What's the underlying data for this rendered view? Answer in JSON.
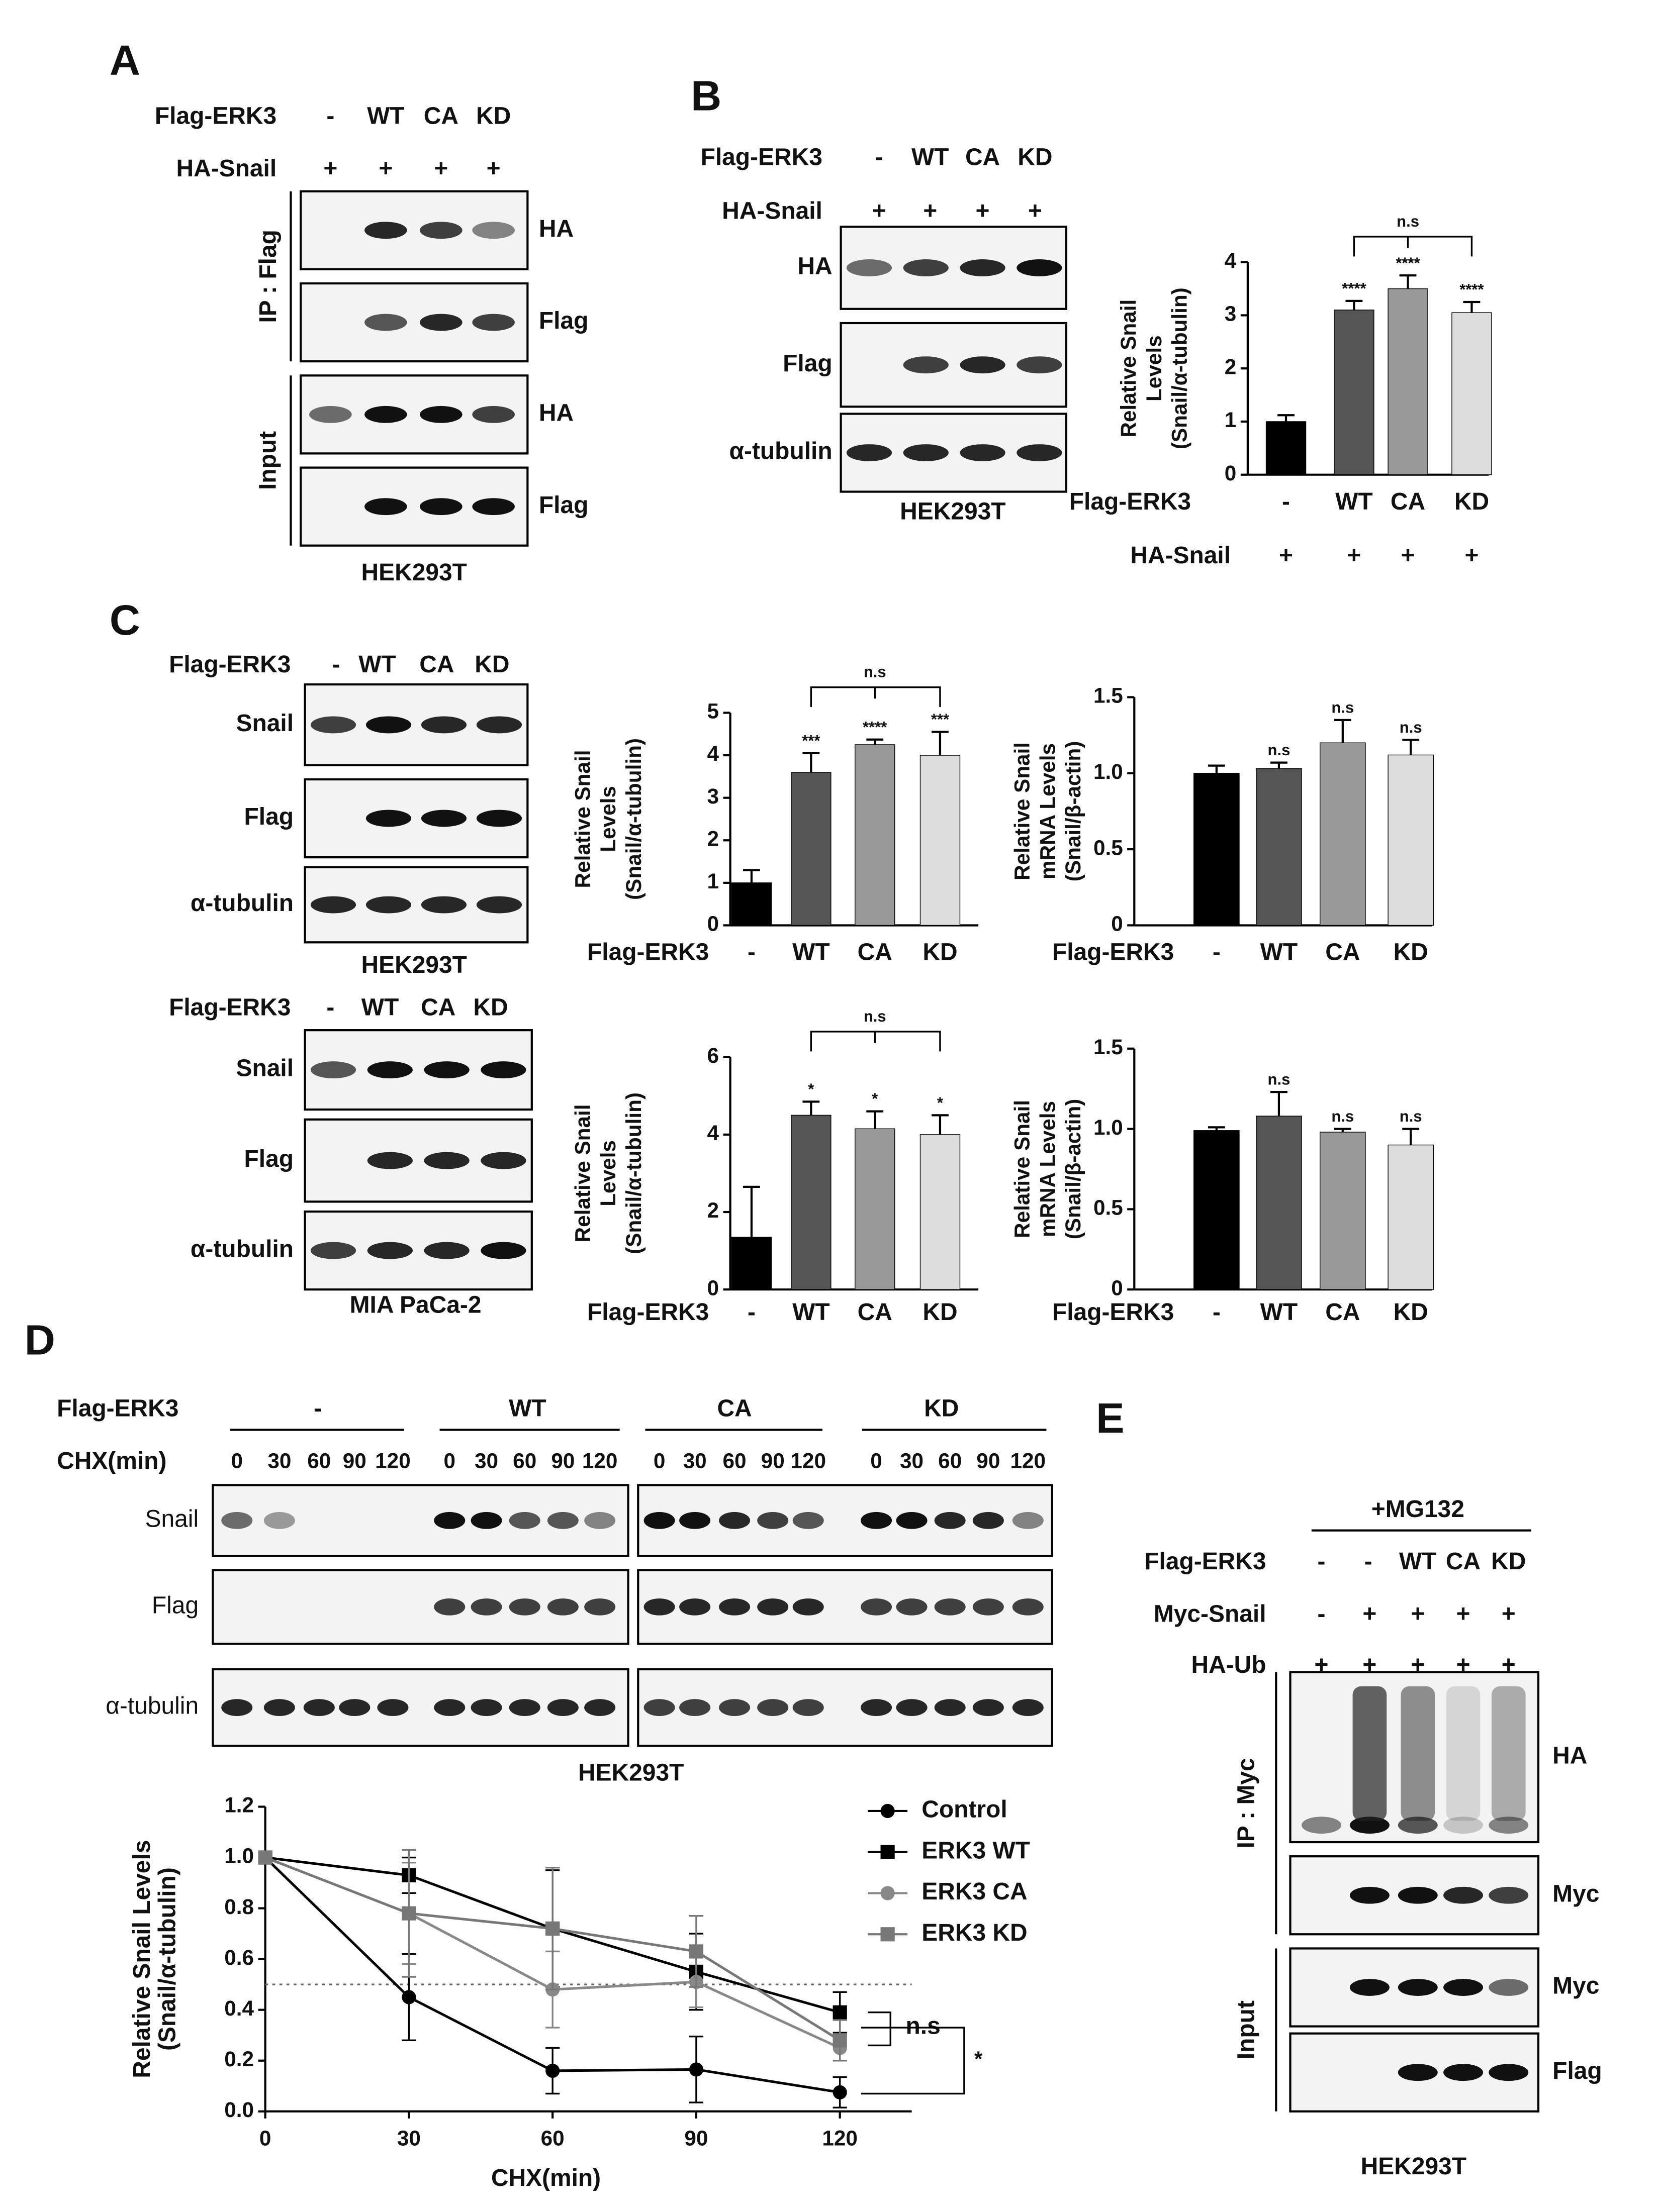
{
  "panel_labels": [
    "A",
    "B",
    "C",
    "D",
    "E"
  ],
  "blots": [
    {
      "headers": [
        {
          "label": "Flag-ERK3",
          "lanes": [
            "-",
            "WT",
            "CA",
            "KD"
          ]
        },
        {
          "label": "HA-Snail",
          "lanes": [
            "+",
            "+",
            "+",
            "+"
          ]
        }
      ],
      "rows": [
        "HA",
        "Flag",
        "HA",
        "Flag"
      ],
      "groups": [
        "IP : Flag",
        "Input"
      ],
      "cell_line": "HEK293T"
    },
    {
      "headers": [
        {
          "label": "Flag-ERK3",
          "lanes": [
            "-",
            "WT",
            "CA",
            "KD"
          ]
        },
        {
          "label": "HA-Snail",
          "lanes": [
            "+",
            "+",
            "+",
            "+"
          ]
        }
      ],
      "rows": [
        "HA",
        "Flag",
        "α-tubulin"
      ],
      "cell_line": "HEK293T"
    },
    {
      "headers": [
        {
          "label": "Flag-ERK3",
          "lanes": [
            "-",
            "WT",
            "CA",
            "KD"
          ]
        }
      ],
      "rows": [
        "Snail",
        "Flag",
        "α-tubulin"
      ],
      "cell_line": "HEK293T"
    },
    {
      "headers": [
        {
          "label": "Flag-ERK3",
          "lanes": [
            "-",
            "WT",
            "CA",
            "KD"
          ]
        }
      ],
      "rows": [
        "Snail",
        "Flag",
        "α-tubulin"
      ],
      "cell_line": "MIA PaCa-2"
    },
    {
      "headers": [
        {
          "label": "Flag-ERK3",
          "lanes": [
            "-",
            "WT",
            "CA",
            "KD"
          ]
        },
        {
          "label": "CHX(min)",
          "lanes": [
            "0",
            "30",
            "60",
            "90",
            "120",
            "0",
            "30",
            "60",
            "90",
            "120",
            "0",
            "30",
            "60",
            "90",
            "120",
            "0",
            "30",
            "60",
            "90",
            "120"
          ]
        }
      ],
      "rows": [
        "Snail",
        "Flag",
        "α-tubulin"
      ],
      "cell_line": "HEK293T"
    },
    {
      "treatment": "+MG132",
      "headers": [
        {
          "label": "Flag-ERK3",
          "lanes": [
            "-",
            "-",
            "WT",
            "CA",
            "KD"
          ]
        },
        {
          "label": "Myc-Snail",
          "lanes": [
            "-",
            "+",
            "+",
            "+",
            "+"
          ]
        },
        {
          "label": "HA-Ub",
          "lanes": [
            "+",
            "+",
            "+",
            "+",
            "+"
          ]
        }
      ],
      "rows": [
        "HA",
        "Myc",
        "Myc",
        "Flag"
      ],
      "groups": [
        "IP : Myc",
        "Input"
      ],
      "cell_line": "HEK293T"
    }
  ],
  "chart_data": [
    {
      "type": "bar",
      "ylabel": [
        "Relative Snail",
        "Levels",
        "(Snail/α-tubulin)"
      ],
      "xlabel": "Flag-ERK3",
      "categories": [
        "-",
        "WT",
        "CA",
        "KD"
      ],
      "values": [
        1.0,
        3.1,
        3.5,
        3.05
      ],
      "errors": [
        0.12,
        0.17,
        0.25,
        0.2
      ],
      "significance": [
        null,
        "****",
        "****",
        "****"
      ],
      "colors": [
        "#000000",
        "#555555",
        "#999999",
        "#dddddd"
      ],
      "ylim": [
        0,
        4
      ],
      "yticks": [
        0,
        1,
        2,
        3,
        4
      ],
      "bracket_label": "n.s",
      "row2": {
        "label": "HA-Snail",
        "values": [
          "+",
          "+",
          "+",
          "+"
        ]
      }
    },
    {
      "type": "bar",
      "ylabel": [
        "Relative Snail",
        "Levels",
        "(Snail/α-tubulin)"
      ],
      "xlabel": "Flag-ERK3",
      "categories": [
        "-",
        "WT",
        "CA",
        "KD"
      ],
      "values": [
        1.0,
        3.6,
        4.25,
        4.0
      ],
      "errors": [
        0.3,
        0.45,
        0.12,
        0.55
      ],
      "significance": [
        null,
        "***",
        "****",
        "***"
      ],
      "colors": [
        "#000000",
        "#555555",
        "#999999",
        "#dddddd"
      ],
      "ylim": [
        0,
        5
      ],
      "yticks": [
        0,
        1,
        2,
        3,
        4,
        5
      ],
      "bracket_label": "n.s"
    },
    {
      "type": "bar",
      "ylabel": [
        "Relative Snail",
        "mRNA Levels",
        "(Snail/β-actin)"
      ],
      "xlabel": "Flag-ERK3",
      "categories": [
        "-",
        "WT",
        "CA",
        "KD"
      ],
      "values": [
        1.0,
        1.03,
        1.2,
        1.12
      ],
      "errors": [
        0.05,
        0.04,
        0.15,
        0.1
      ],
      "significance": [
        null,
        "n.s",
        "n.s",
        "n.s"
      ],
      "colors": [
        "#000000",
        "#555555",
        "#999999",
        "#dddddd"
      ],
      "ylim": [
        0,
        1.5
      ],
      "yticks": [
        0,
        0.5,
        {
          "value": 1,
          "label": "1.0"
        },
        1.5
      ]
    },
    {
      "type": "bar",
      "ylabel": [
        "Relative Snail",
        "Levels",
        "(Snail/α-tubulin)"
      ],
      "xlabel": "Flag-ERK3",
      "categories": [
        "-",
        "WT",
        "CA",
        "KD"
      ],
      "values": [
        1.35,
        4.5,
        4.15,
        4.0
      ],
      "errors": [
        1.3,
        0.35,
        0.45,
        0.5
      ],
      "significance": [
        null,
        "*",
        "*",
        "*"
      ],
      "colors": [
        "#000000",
        "#555555",
        "#999999",
        "#dddddd"
      ],
      "ylim": [
        0,
        6
      ],
      "yticks": [
        0,
        2,
        4,
        6
      ],
      "bracket_label": "n.s"
    },
    {
      "type": "bar",
      "ylabel": [
        "Relative Snail",
        "mRNA Levels",
        "(Snail/β-actin)"
      ],
      "xlabel": "Flag-ERK3",
      "categories": [
        "-",
        "WT",
        "CA",
        "KD"
      ],
      "values": [
        0.99,
        1.08,
        0.98,
        0.9
      ],
      "errors": [
        0.02,
        0.15,
        0.02,
        0.1
      ],
      "significance": [
        null,
        "n.s",
        "n.s",
        "n.s"
      ],
      "colors": [
        "#000000",
        "#555555",
        "#999999",
        "#dddddd"
      ],
      "ylim": [
        0,
        1.5
      ],
      "yticks": [
        0,
        0.5,
        {
          "value": 1,
          "label": "1.0"
        },
        1.5
      ]
    },
    {
      "type": "line",
      "ylabel": [
        "Relative Snail Levels",
        "(Snail/α-tubulin)"
      ],
      "xlabel": "CHX(min)",
      "x": [
        0,
        30,
        60,
        90,
        120
      ],
      "xlim": [
        0,
        135
      ],
      "xticks": [
        0,
        30,
        60,
        90,
        120
      ],
      "ylim": [
        0,
        1.2
      ],
      "yticks": [
        {
          "value": 0,
          "label": "0.0"
        },
        0.2,
        0.4,
        0.6,
        0.8,
        {
          "value": 1,
          "label": "1.0"
        },
        1.2
      ],
      "reference_line": 0.5,
      "series": [
        {
          "name": "Control",
          "color": "#000000",
          "marker": "circle",
          "values": [
            1.0,
            0.45,
            0.16,
            0.165,
            0.075
          ],
          "errors": [
            0,
            0.17,
            0.09,
            0.13,
            0.06
          ]
        },
        {
          "name": "ERK3 WT",
          "color": "#000000",
          "marker": "square",
          "values": [
            1.0,
            0.93,
            0.72,
            0.55,
            0.39
          ],
          "errors": [
            0,
            0.07,
            0.23,
            0.15,
            0.08
          ]
        },
        {
          "name": "ERK3 CA",
          "color": "#888888",
          "marker": "circle",
          "values": [
            1.0,
            0.78,
            0.48,
            0.51,
            0.25
          ],
          "errors": [
            0,
            0.2,
            0.15,
            0.1,
            0.05
          ]
        },
        {
          "name": "ERK3 KD",
          "color": "#777777",
          "marker": "square",
          "values": [
            1.0,
            0.78,
            0.72,
            0.63,
            0.28
          ],
          "errors": [
            0,
            0.25,
            0.24,
            0.14,
            0.08
          ]
        }
      ],
      "annotations": [
        "n.s",
        "*"
      ]
    }
  ]
}
